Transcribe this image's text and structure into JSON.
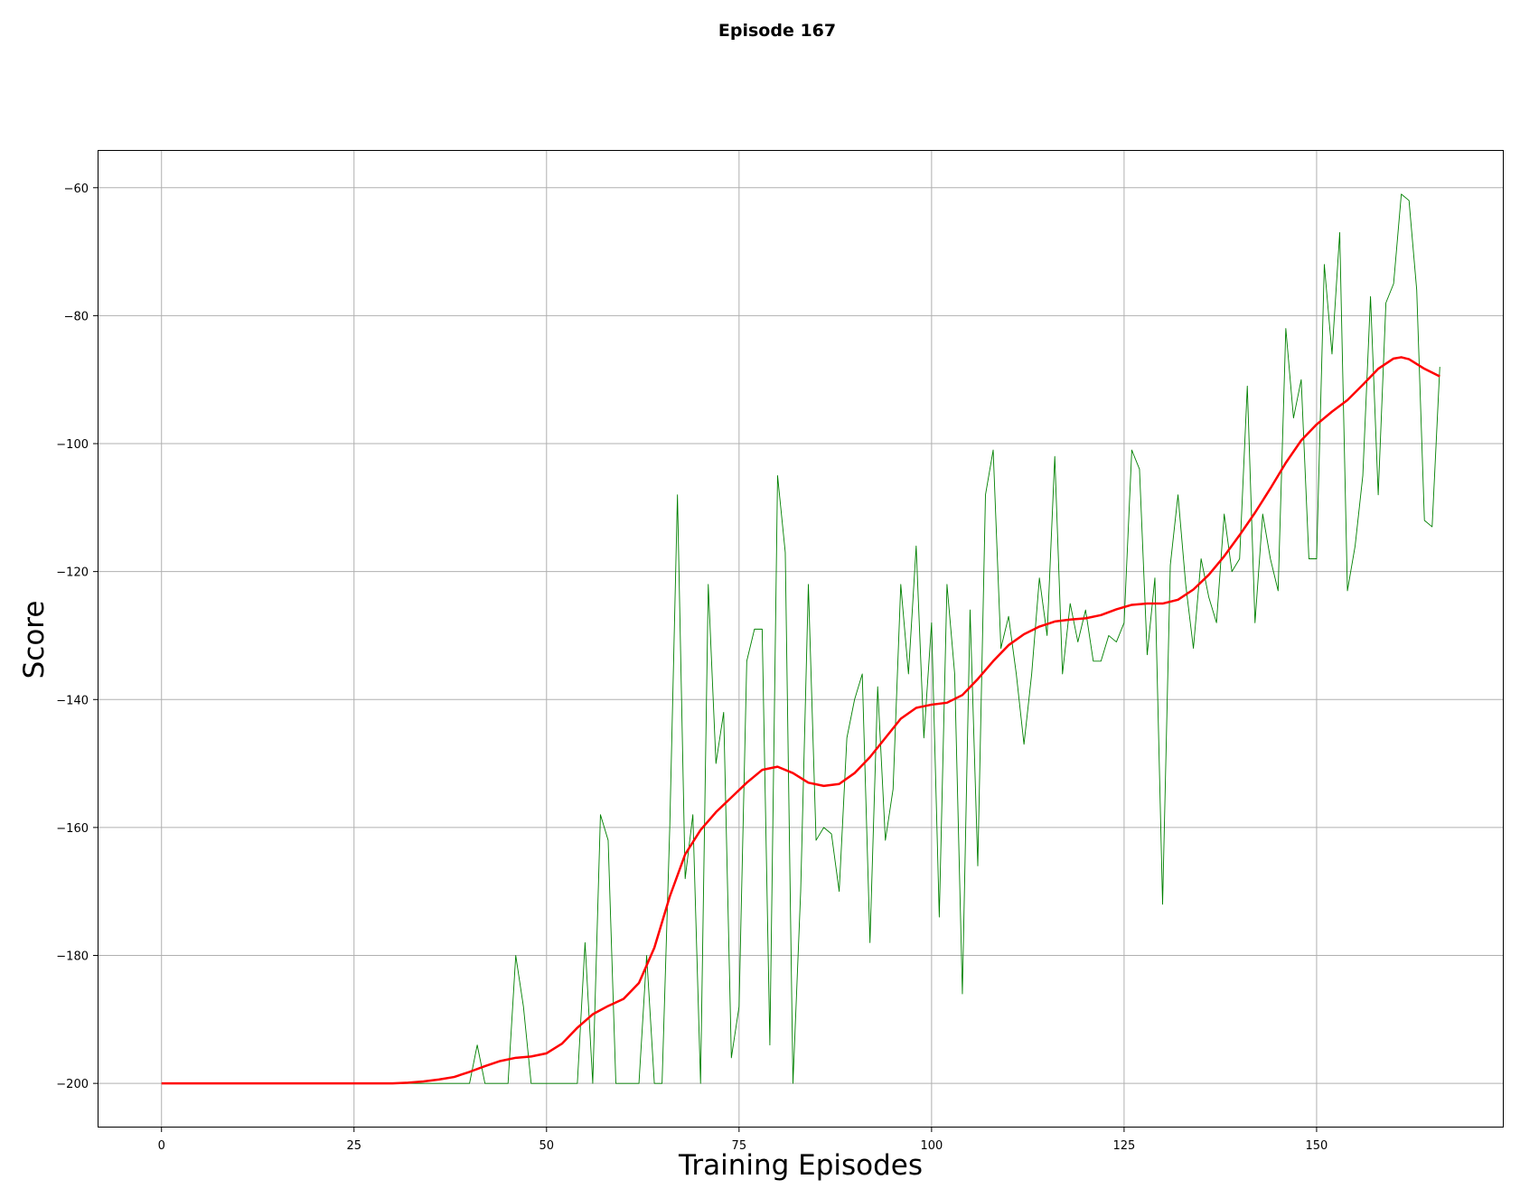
{
  "colors": {
    "raw": "#008000",
    "smoothed": "#ff0000",
    "grid": "#b0b0b0",
    "frame": "#000000"
  },
  "chart_data": {
    "type": "line",
    "title": "Episode 167",
    "xlabel": "Training Episodes",
    "ylabel": "Score",
    "xlim": [
      -8.3,
      174.3
    ],
    "ylim": [
      -206.9,
      -54.1
    ],
    "xticks": [
      0,
      25,
      50,
      75,
      100,
      125,
      150
    ],
    "xtick_labels": [
      "0",
      "25",
      "50",
      "75",
      "100",
      "125",
      "150"
    ],
    "yticks": [
      -200,
      -180,
      -160,
      -140,
      -120,
      -100,
      -80,
      -60
    ],
    "ytick_labels": [
      "−200",
      "−180",
      "−160",
      "−140",
      "−120",
      "−100",
      "−80",
      "−60"
    ],
    "grid": true,
    "legend": false,
    "series": [
      {
        "color": "#008000",
        "line_width": "thin",
        "x": [
          0,
          1,
          2,
          3,
          4,
          5,
          6,
          7,
          8,
          9,
          10,
          11,
          12,
          13,
          14,
          15,
          16,
          17,
          18,
          19,
          20,
          21,
          22,
          23,
          24,
          25,
          26,
          27,
          28,
          29,
          30,
          31,
          32,
          33,
          34,
          35,
          36,
          37,
          38,
          39,
          40,
          41,
          42,
          43,
          44,
          45,
          46,
          47,
          48,
          49,
          50,
          51,
          52,
          53,
          54,
          55,
          56,
          57,
          58,
          59,
          60,
          61,
          62,
          63,
          64,
          65,
          66,
          67,
          68,
          69,
          70,
          71,
          72,
          73,
          74,
          75,
          76,
          77,
          78,
          79,
          80,
          81,
          82,
          83,
          84,
          85,
          86,
          87,
          88,
          89,
          90,
          91,
          92,
          93,
          94,
          95,
          96,
          97,
          98,
          99,
          100,
          101,
          102,
          103,
          104,
          105,
          106,
          107,
          108,
          109,
          110,
          111,
          112,
          113,
          114,
          115,
          116,
          117,
          118,
          119,
          120,
          121,
          122,
          123,
          124,
          125,
          126,
          127,
          128,
          129,
          130,
          131,
          132,
          133,
          134,
          135,
          136,
          137,
          138,
          139,
          140,
          141,
          142,
          143,
          144,
          145,
          146,
          147,
          148,
          149,
          150,
          151,
          152,
          153,
          154,
          155,
          156,
          157,
          158,
          159,
          160,
          161,
          162,
          163,
          164,
          165,
          166
        ],
        "y": [
          -200,
          -200,
          -200,
          -200,
          -200,
          -200,
          -200,
          -200,
          -200,
          -200,
          -200,
          -200,
          -200,
          -200,
          -200,
          -200,
          -200,
          -200,
          -200,
          -200,
          -200,
          -200,
          -200,
          -200,
          -200,
          -200,
          -200,
          -200,
          -200,
          -200,
          -200,
          -200,
          -200,
          -200,
          -200,
          -200,
          -200,
          -200,
          -200,
          -200,
          -200,
          -194,
          -200,
          -200,
          -200,
          -200,
          -180,
          -188,
          -200,
          -200,
          -200,
          -200,
          -200,
          -200,
          -200,
          -178,
          -200,
          -158,
          -162,
          -200,
          -200,
          -200,
          -200,
          -180,
          -200,
          -200,
          -160,
          -108,
          -168,
          -158,
          -200,
          -122,
          -150,
          -142,
          -196,
          -188,
          -134,
          -129,
          -129,
          -194,
          -105,
          -117,
          -200,
          -170,
          -122,
          -162,
          -160,
          -161,
          -170,
          -146,
          -140,
          -136,
          -178,
          -138,
          -162,
          -154,
          -122,
          -136,
          -116,
          -146,
          -128,
          -174,
          -122,
          -136,
          -186,
          -126,
          -166,
          -108,
          -101,
          -132,
          -127,
          -136,
          -147,
          -136,
          -121,
          -130,
          -102,
          -136,
          -125,
          -131,
          -126,
          -134,
          -134,
          -130,
          -131,
          -128,
          -101,
          -104,
          -133,
          -121,
          -172,
          -119,
          -108,
          -122,
          -132,
          -118,
          -124,
          -128,
          -111,
          -120,
          -118,
          -91,
          -128,
          -111,
          -118,
          -123,
          -82,
          -96,
          -90,
          -118,
          -118,
          -72,
          -86,
          -67,
          -123,
          -116,
          -105,
          -77,
          -108,
          -78,
          -75,
          -61,
          -62,
          -76,
          -112,
          -113,
          -88
        ]
      },
      {
        "color": "#ff0000",
        "line_width": "thick",
        "x": [
          0,
          10,
          20,
          28,
          30,
          32,
          34,
          36,
          38,
          40,
          42,
          44,
          46,
          48,
          50,
          52,
          54,
          56,
          58,
          60,
          62,
          64,
          66,
          68,
          70,
          72,
          74,
          76,
          78,
          80,
          82,
          84,
          86,
          88,
          90,
          92,
          94,
          96,
          98,
          100,
          102,
          104,
          106,
          108,
          110,
          112,
          114,
          116,
          118,
          120,
          122,
          124,
          126,
          128,
          130,
          132,
          134,
          136,
          138,
          140,
          142,
          144,
          146,
          148,
          150,
          152,
          154,
          156,
          158,
          160,
          161,
          162,
          164,
          166
        ],
        "y": [
          -200,
          -200,
          -200,
          -200,
          -200,
          -199.9,
          -199.7,
          -199.4,
          -199,
          -198.2,
          -197.3,
          -196.5,
          -196,
          -195.8,
          -195.3,
          -193.8,
          -191.3,
          -189.2,
          -187.9,
          -186.8,
          -184.3,
          -178.8,
          -170.8,
          -164.2,
          -160.4,
          -157.6,
          -155.3,
          -153,
          -151,
          -150.5,
          -151.5,
          -153,
          -153.5,
          -153.2,
          -151.5,
          -149,
          -146,
          -143,
          -141.3,
          -140.8,
          -140.5,
          -139.3,
          -136.8,
          -134,
          -131.5,
          -129.8,
          -128.6,
          -127.8,
          -127.5,
          -127.3,
          -126.8,
          -125.9,
          -125.2,
          -125,
          -125,
          -124.4,
          -122.8,
          -120.5,
          -117.6,
          -114.3,
          -110.8,
          -107,
          -103,
          -99.5,
          -97,
          -95,
          -93.2,
          -90.8,
          -88.3,
          -86.7,
          -86.5,
          -86.8,
          -88.3,
          -89.5
        ]
      }
    ]
  }
}
